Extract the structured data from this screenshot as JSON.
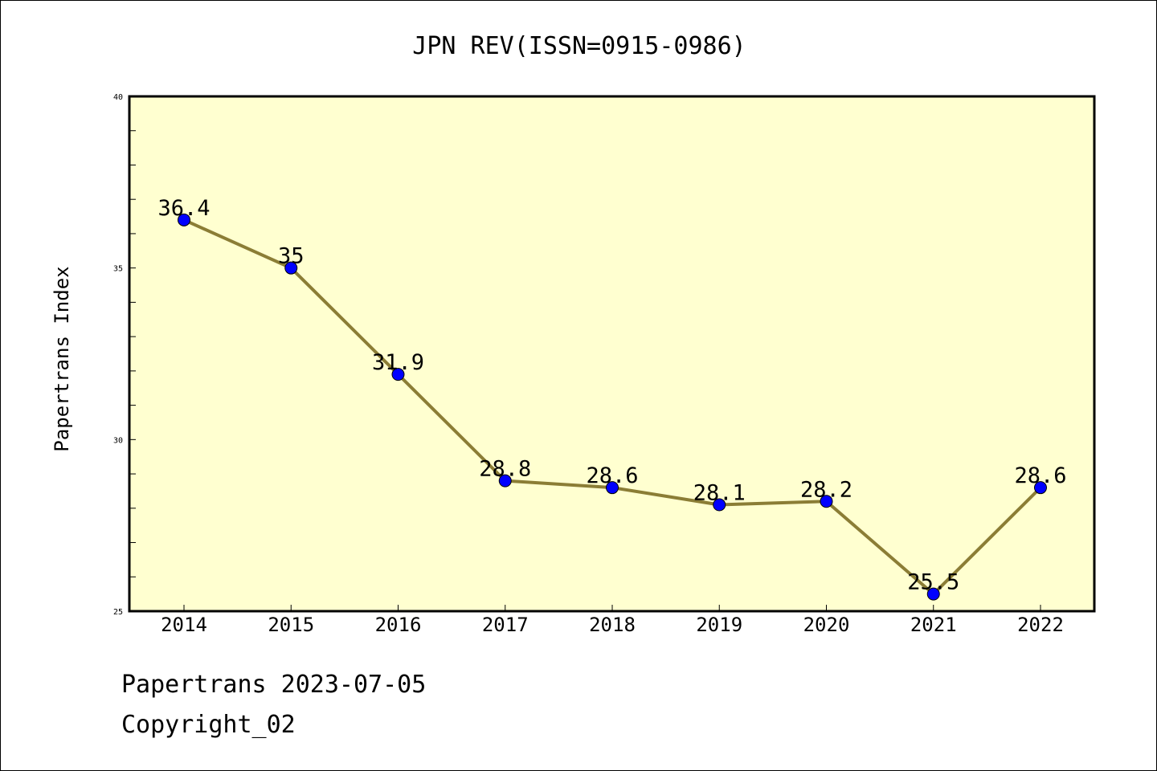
{
  "chart_data": {
    "type": "line",
    "title": "JPN REV(ISSN=0915-0986)",
    "xlabel": "",
    "ylabel": "Papertrans Index",
    "categories": [
      "2014",
      "2015",
      "2016",
      "2017",
      "2018",
      "2019",
      "2020",
      "2021",
      "2022"
    ],
    "series": [
      {
        "values": [
          36.4,
          35,
          31.9,
          28.8,
          28.6,
          28.1,
          28.2,
          25.5,
          28.6
        ],
        "labels": [
          "36.4",
          "35",
          "31.9",
          "28.8",
          "28.6",
          "28.1",
          "28.2",
          "25.5",
          "28.6"
        ]
      }
    ],
    "ylim": [
      25,
      40
    ],
    "yticks": [
      "25",
      "30",
      "35",
      "40"
    ],
    "grid": false,
    "colors": {
      "line": "#8B7D35",
      "marker": "#0000FF",
      "plot_background": "#FFFFD0"
    }
  },
  "footer": {
    "line1": "Papertrans 2023-07-05",
    "line2": "Copyright_02"
  }
}
